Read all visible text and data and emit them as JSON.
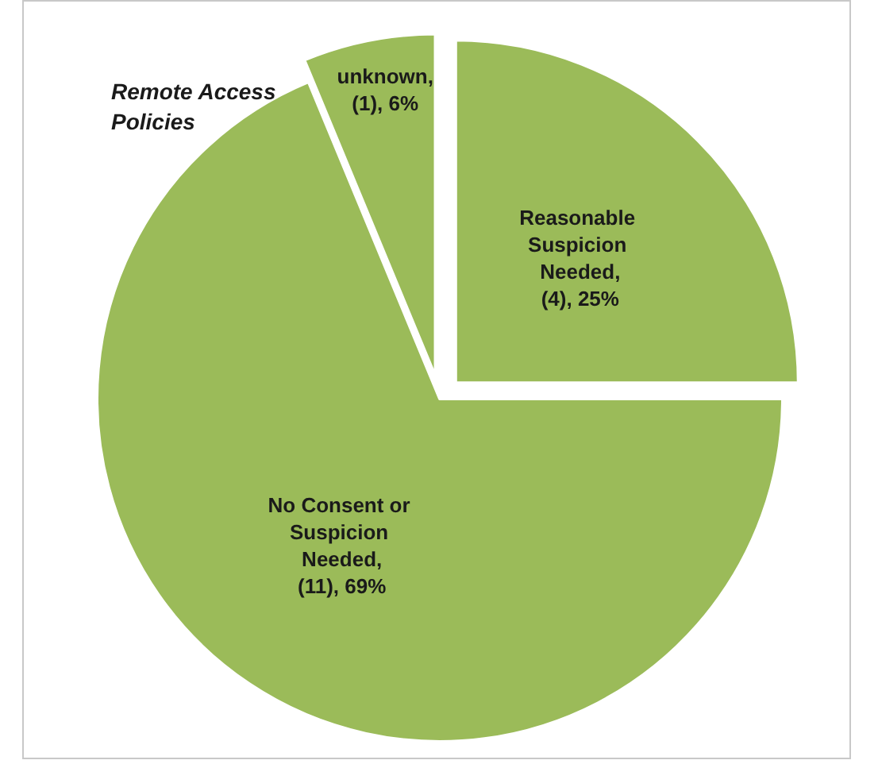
{
  "chart_data": {
    "type": "pie",
    "title": "Remote Access Policies",
    "categories": [
      "Reasonable Suspicion Needed",
      "No Consent or Suspicion Needed",
      "unknown"
    ],
    "values": [
      4,
      11,
      1
    ],
    "value_labels": [
      ", (4), 25%",
      ", (11), 69%",
      ", (1), 6%"
    ],
    "colors": [
      "#9bbb59",
      "#9bbb59",
      "#9bbb59"
    ],
    "legend": false
  }
}
